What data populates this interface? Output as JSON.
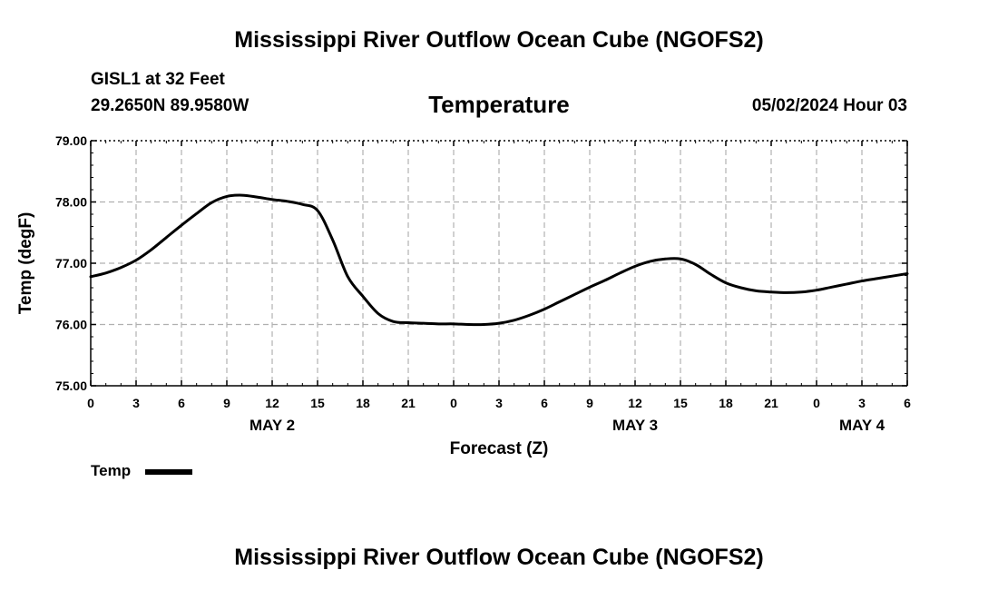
{
  "header": {
    "title": "Mississippi River Outflow Ocean Cube (NGOFS2)",
    "station": "GISL1 at 32 Feet",
    "coords": "29.2650N  89.9580W",
    "plot_title": "Temperature",
    "timestamp": "05/02/2024 Hour 03"
  },
  "footer": {
    "title": "Mississippi River Outflow Ocean Cube (NGOFS2)"
  },
  "legend": {
    "label": "Temp",
    "color": "#000000"
  },
  "chart_data": {
    "type": "line",
    "title": "Temperature",
    "xlabel": "Forecast (Z)",
    "ylabel": "Temp (degF)",
    "xlim": [
      0,
      54
    ],
    "ylim": [
      75.0,
      79.0
    ],
    "grid": true,
    "x_ticks": [
      0,
      3,
      6,
      9,
      12,
      15,
      18,
      21,
      24,
      27,
      30,
      33,
      36,
      39,
      42,
      45,
      48,
      51,
      54
    ],
    "x_tick_labels": [
      "0",
      "3",
      "6",
      "9",
      "12",
      "15",
      "18",
      "21",
      "0",
      "3",
      "6",
      "9",
      "12",
      "15",
      "18",
      "21",
      "0",
      "3",
      "6"
    ],
    "y_ticks": [
      75.0,
      76.0,
      77.0,
      78.0,
      79.0
    ],
    "y_tick_labels": [
      "75.00",
      "76.00",
      "77.00",
      "78.00",
      "79.00"
    ],
    "date_labels": [
      {
        "x": 12,
        "label": "MAY 2"
      },
      {
        "x": 36,
        "label": "MAY 3"
      },
      {
        "x": 51,
        "label": "MAY 4"
      }
    ],
    "series": [
      {
        "name": "Temp",
        "color": "#000000",
        "x": [
          0,
          1,
          2,
          3,
          4,
          5,
          6,
          7,
          8,
          9,
          10,
          11,
          12,
          13,
          14,
          15,
          16,
          17,
          18,
          19,
          20,
          21,
          22,
          23,
          24,
          25,
          26,
          27,
          28,
          29,
          30,
          31,
          32,
          33,
          34,
          35,
          36,
          37,
          38,
          39,
          40,
          41,
          42,
          43,
          44,
          45,
          46,
          47,
          48,
          49,
          50,
          51,
          52,
          53,
          54
        ],
        "y": [
          76.78,
          76.84,
          76.93,
          77.05,
          77.22,
          77.42,
          77.62,
          77.81,
          77.99,
          78.09,
          78.11,
          78.08,
          78.04,
          78.01,
          77.96,
          77.86,
          77.38,
          76.78,
          76.46,
          76.18,
          76.05,
          76.03,
          76.02,
          76.01,
          76.01,
          76.0,
          76.0,
          76.02,
          76.07,
          76.15,
          76.25,
          76.37,
          76.49,
          76.61,
          76.72,
          76.84,
          76.95,
          77.03,
          77.07,
          77.07,
          76.98,
          76.82,
          76.68,
          76.6,
          76.55,
          76.53,
          76.52,
          76.53,
          76.56,
          76.61,
          76.66,
          76.71,
          76.75,
          76.79,
          76.83
        ]
      }
    ]
  }
}
